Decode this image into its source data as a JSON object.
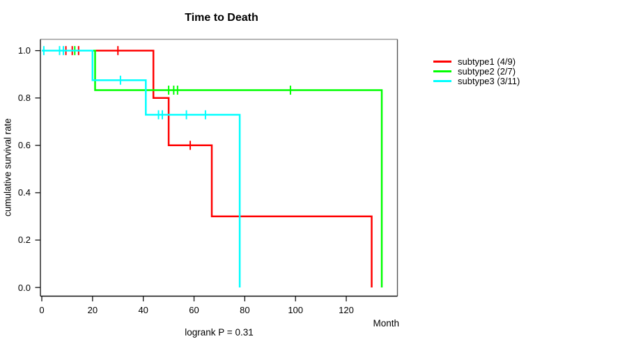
{
  "figure_title": "Time to Death",
  "chart_data": {
    "type": "line",
    "variant": "kaplan-meier-step",
    "title": "Time to Death",
    "xlabel": "Month",
    "ylabel": "cumulative survival rate",
    "annotation": "logrank P = 0.31",
    "xlim": [
      0,
      140
    ],
    "ylim": [
      0.0,
      1.05
    ],
    "grid": false,
    "legend_position": "right-outside",
    "x_ticks": [
      0,
      20,
      40,
      60,
      80,
      100,
      120
    ],
    "y_ticks": [
      "1.0",
      "0.8",
      "0.6",
      "0.4",
      "0.2",
      "0.0"
    ],
    "series": [
      {
        "name": "subtype1",
        "label": "subtype1 (4/9)",
        "color": "#ff0000",
        "events": "4 deaths of 9",
        "steps": [
          [
            0,
            1.0
          ],
          [
            44,
            1.0
          ],
          [
            44,
            0.8
          ],
          [
            50,
            0.8
          ],
          [
            50,
            0.6
          ],
          [
            67,
            0.6
          ],
          [
            67,
            0.3
          ],
          [
            130,
            0.3
          ],
          [
            130,
            0.0
          ]
        ],
        "censors": [
          [
            9.5,
            1.0
          ],
          [
            12,
            1.0
          ],
          [
            14.5,
            1.0
          ],
          [
            30,
            1.0
          ],
          [
            58.5,
            0.6
          ]
        ]
      },
      {
        "name": "subtype2",
        "label": "subtype2 (2/7)",
        "color": "#00ff00",
        "events": "2 deaths of 7",
        "steps": [
          [
            0,
            1.0
          ],
          [
            21,
            1.0
          ],
          [
            21,
            0.833
          ],
          [
            134,
            0.833
          ],
          [
            134,
            0.0
          ]
        ],
        "censors": [
          [
            13,
            1.0
          ],
          [
            50,
            0.833
          ],
          [
            52,
            0.833
          ],
          [
            53.5,
            0.833
          ],
          [
            98,
            0.833
          ]
        ]
      },
      {
        "name": "subtype3",
        "label": "subtype3 (3/11)",
        "color": "#00ffff",
        "events": "3 deaths of 11",
        "steps": [
          [
            0,
            1.0
          ],
          [
            20,
            1.0
          ],
          [
            20,
            0.875
          ],
          [
            41,
            0.875
          ],
          [
            41,
            0.729
          ],
          [
            78,
            0.729
          ],
          [
            78,
            0.0
          ]
        ],
        "censors": [
          [
            0.8,
            1.0
          ],
          [
            7,
            1.0
          ],
          [
            8.5,
            1.0
          ],
          [
            31,
            0.875
          ],
          [
            46,
            0.729
          ],
          [
            47.5,
            0.729
          ],
          [
            57,
            0.729
          ],
          [
            64.5,
            0.729
          ]
        ]
      }
    ],
    "frame_colors": {
      "top": "#9a9a9a",
      "right": "#555555",
      "left": "#1a1a1a",
      "bottom": "#111111",
      "tick": "#111111"
    }
  }
}
